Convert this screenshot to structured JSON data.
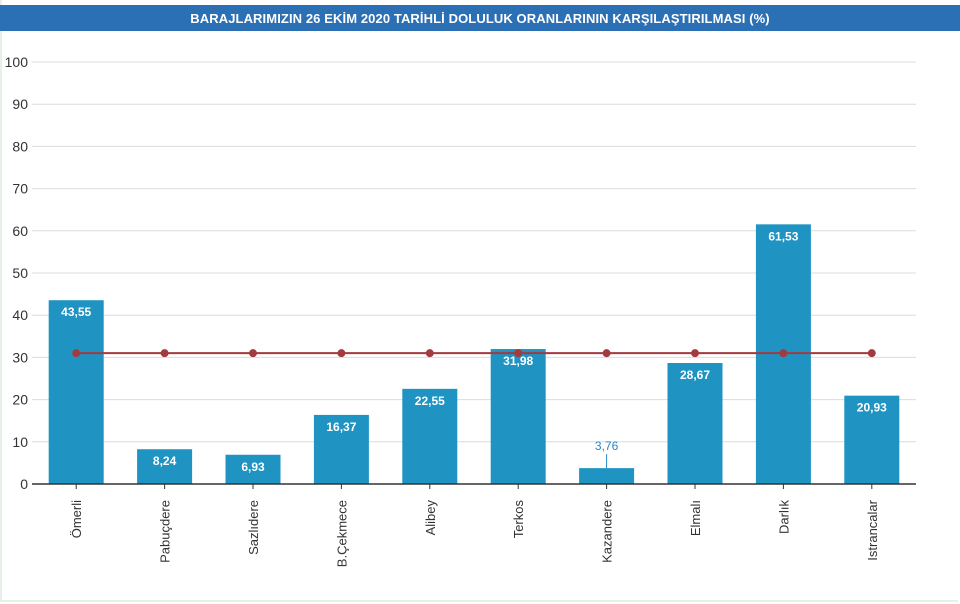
{
  "chart_data": {
    "type": "bar",
    "title": "BARAJLARIMIZIN 26 EKİM 2020 TARİHLİ DOLULUK ORANLARININ KARŞILAŞTIRILMASI (%)",
    "categories": [
      "Ömerli",
      "Pabuçdere",
      "Sazlıdere",
      "B.Çekmece",
      "Alibey",
      "Terkos",
      "Kazandere",
      "Elmalı",
      "Darlık",
      "Istrancalar"
    ],
    "series": [
      {
        "type": "bar",
        "values": [
          43.55,
          8.24,
          6.93,
          16.37,
          22.55,
          31.98,
          3.76,
          28.67,
          61.53,
          20.93
        ],
        "labels": [
          "43,55",
          "8,24",
          "6,93",
          "16,37",
          "22,55",
          "31,98",
          "3,76",
          "28,67",
          "61,53",
          "20,93"
        ],
        "color": "#1f93c2"
      },
      {
        "type": "line",
        "values": [
          31,
          31,
          31,
          31,
          31,
          31,
          31,
          31,
          31,
          31
        ],
        "color": "#a33a3f"
      }
    ],
    "yticks": [
      "0",
      "10",
      "20",
      "30",
      "40",
      "50",
      "60",
      "70",
      "80",
      "90",
      "100"
    ],
    "ylim": [
      0,
      100
    ],
    "grid": true,
    "xlabel": "",
    "ylabel": "",
    "colors": {
      "title_bg": "#2b6fb5",
      "grid": "#dcdcdc",
      "axis": "#333333",
      "label_inside": "#ffffff",
      "label_outside": "#2b86c5"
    }
  }
}
